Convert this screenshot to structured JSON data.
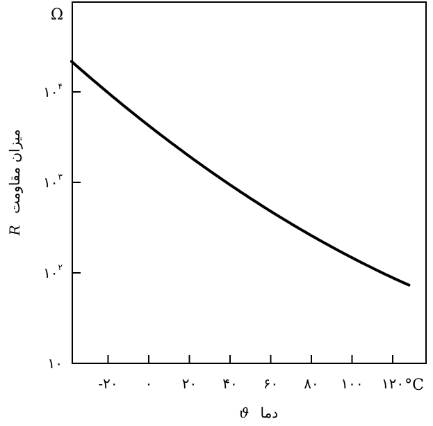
{
  "chart_data": {
    "type": "line",
    "title": "",
    "xlabel_text": "دما",
    "xlabel_symbol": "ϑ",
    "ylabel_text": "میزان مقاومت",
    "ylabel_symbol": "R",
    "y_unit": "Ω",
    "x_unit": "°C",
    "y_scale": "log",
    "grid": false,
    "xlim": [
      -40,
      130
    ],
    "ylim": [
      10,
      100000
    ],
    "x_ticks": [
      {
        "value": -20,
        "label": "-۲۰"
      },
      {
        "value": 0,
        "label": "۰"
      },
      {
        "value": 20,
        "label": "۲۰"
      },
      {
        "value": 40,
        "label": "۴۰"
      },
      {
        "value": 60,
        "label": "۶۰"
      },
      {
        "value": 80,
        "label": "۸۰"
      },
      {
        "value": 100,
        "label": "۱۰۰"
      },
      {
        "value": 120,
        "label": "۱۲۰"
      }
    ],
    "y_ticks": [
      {
        "value": 10,
        "base": "۱۰",
        "exp": ""
      },
      {
        "value": 100,
        "base": "۱۰",
        "exp": "۲"
      },
      {
        "value": 1000,
        "base": "۱۰",
        "exp": "۳"
      },
      {
        "value": 10000,
        "base": "۱۰",
        "exp": "۴"
      }
    ],
    "series": [
      {
        "points": [
          {
            "x": -38,
            "y": 21000
          },
          {
            "x": -20,
            "y": 9800
          },
          {
            "x": 0,
            "y": 4400
          },
          {
            "x": 20,
            "y": 2000
          },
          {
            "x": 40,
            "y": 960
          },
          {
            "x": 60,
            "y": 470
          },
          {
            "x": 80,
            "y": 250
          },
          {
            "x": 100,
            "y": 140
          },
          {
            "x": 120,
            "y": 88
          },
          {
            "x": 128,
            "y": 77
          }
        ]
      }
    ]
  }
}
